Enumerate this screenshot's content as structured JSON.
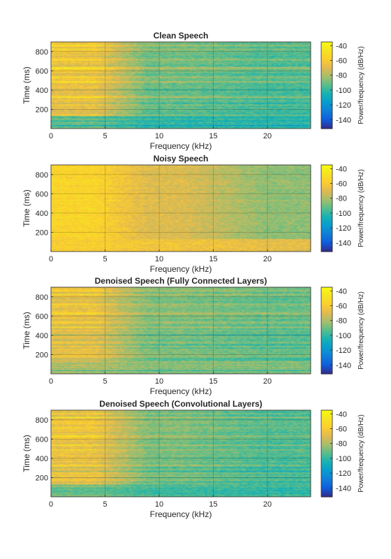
{
  "figure": {
    "colorbar": {
      "label": "Power/frequency (dB/Hz)",
      "tick_labels": [
        "-40",
        "-60",
        "-80",
        "-100",
        "-120",
        "-140"
      ],
      "range": [
        -152,
        -35
      ],
      "colormap": "parula"
    },
    "common_axes": {
      "xlabel": "Frequency (kHz)",
      "ylabel": "Time (ms)",
      "xlim": [
        0,
        24
      ],
      "ylim": [
        0,
        900
      ],
      "x_tick_labels": [
        "0",
        "5",
        "10",
        "15",
        "20"
      ],
      "y_tick_labels": [
        "200",
        "400",
        "600",
        "800"
      ],
      "grid": true
    }
  },
  "chart_data": [
    {
      "type": "heatmap",
      "title": "Clean Speech",
      "xlabel": "Frequency (kHz)",
      "ylabel": "Time (ms)",
      "xlim": [
        0,
        24
      ],
      "ylim": [
        0,
        900
      ],
      "x_ticks": [
        0,
        5,
        10,
        15,
        20
      ],
      "y_ticks": [
        200,
        400,
        600,
        800
      ],
      "z_range_dB_per_Hz": [
        -152,
        -35
      ],
      "approx_level_dB_per_Hz": {
        "low_freq_0_4kHz": -65,
        "mid_freq_5_12kHz": -90,
        "high_freq_15_24kHz": -95,
        "silence_0_130ms": -105
      }
    },
    {
      "type": "heatmap",
      "title": "Noisy Speech",
      "xlabel": "Frequency (kHz)",
      "ylabel": "Time (ms)",
      "xlim": [
        0,
        24
      ],
      "ylim": [
        0,
        900
      ],
      "x_ticks": [
        0,
        5,
        10,
        15,
        20
      ],
      "y_ticks": [
        200,
        400,
        600,
        800
      ],
      "z_range_dB_per_Hz": [
        -152,
        -35
      ],
      "approx_level_dB_per_Hz": {
        "low_freq_0_4kHz": -55,
        "mid_freq_5_12kHz": -70,
        "high_freq_15_24kHz": -85,
        "silence_0_130ms": -60
      }
    },
    {
      "type": "heatmap",
      "title": "Denoised Speech (Fully Connected Layers)",
      "xlabel": "Frequency (kHz)",
      "ylabel": "Time (ms)",
      "xlim": [
        0,
        24
      ],
      "ylim": [
        0,
        900
      ],
      "x_ticks": [
        0,
        5,
        10,
        15,
        20
      ],
      "y_ticks": [
        200,
        400,
        600,
        800
      ],
      "z_range_dB_per_Hz": [
        -152,
        -35
      ],
      "approx_level_dB_per_Hz": {
        "low_freq_0_4kHz": -68,
        "mid_freq_5_12kHz": -88,
        "high_freq_15_24kHz": -92,
        "silence_0_130ms": -85
      }
    },
    {
      "type": "heatmap",
      "title": "Denoised Speech (Convolutional Layers)",
      "xlabel": "Frequency (kHz)",
      "ylabel": "Time (ms)",
      "xlim": [
        0,
        24
      ],
      "ylim": [
        0,
        900
      ],
      "x_ticks": [
        0,
        5,
        10,
        15,
        20
      ],
      "y_ticks": [
        200,
        400,
        600,
        800
      ],
      "z_range_dB_per_Hz": [
        -152,
        -35
      ],
      "approx_level_dB_per_Hz": {
        "low_freq_0_4kHz": -65,
        "mid_freq_5_12kHz": -88,
        "high_freq_15_24kHz": -95,
        "silence_0_130ms": -100
      }
    }
  ]
}
